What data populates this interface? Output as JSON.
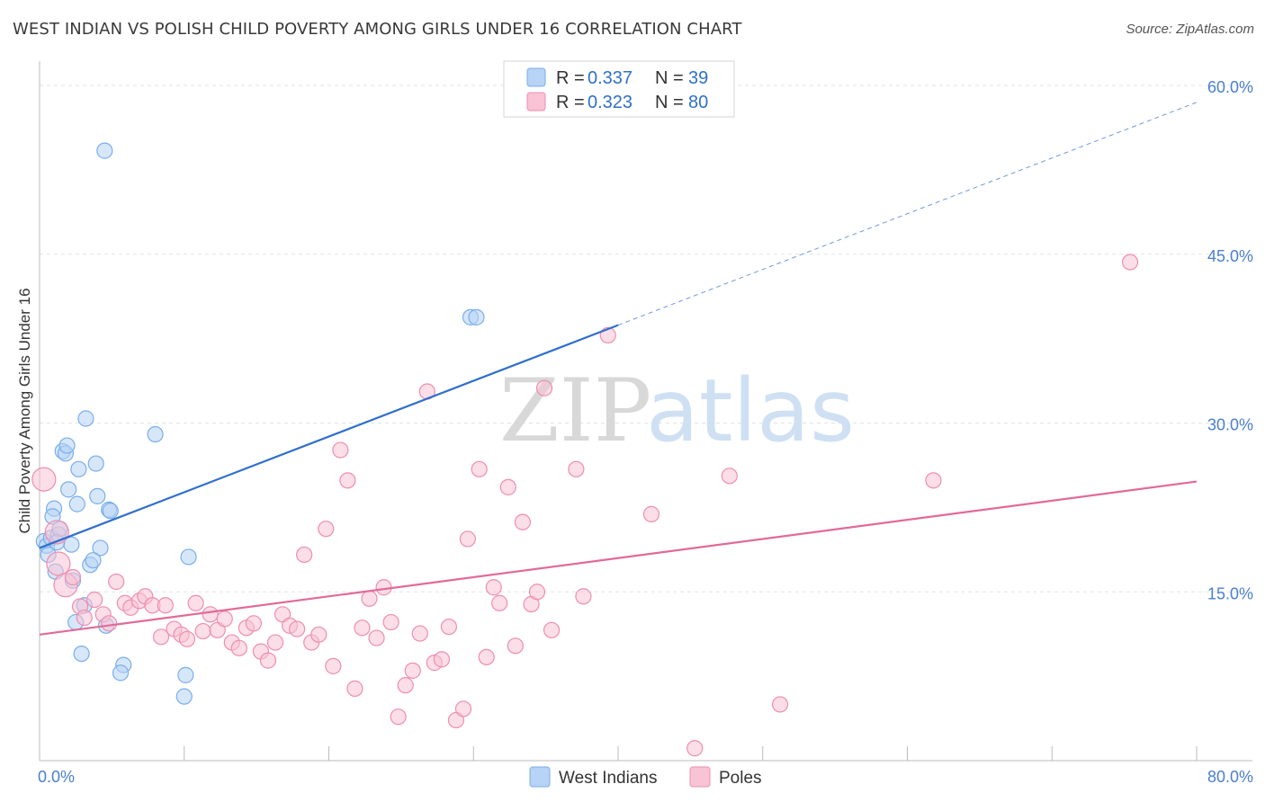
{
  "header": {
    "title": "WEST INDIAN VS POLISH CHILD POVERTY AMONG GIRLS UNDER 16 CORRELATION CHART",
    "source": "Source: ZipAtlas.com"
  },
  "watermark": {
    "zip": "ZIP",
    "atlas": "atlas"
  },
  "legend": {
    "r_label": "R = ",
    "n_label": "N = ",
    "series": [
      {
        "name": "West Indians",
        "r": "0.337",
        "n": "39",
        "color": "#7aaeea",
        "fill": "#b7d3f5"
      },
      {
        "name": "Poles",
        "r": "0.323",
        "n": "80",
        "color": "#ee8eb0",
        "fill": "#f8c3d4"
      }
    ]
  },
  "chart_data": {
    "type": "scatter",
    "title": "WEST INDIAN VS POLISH CHILD POVERTY AMONG GIRLS UNDER 16 CORRELATION CHART",
    "xlabel": "",
    "ylabel": "Child Poverty Among Girls Under 16",
    "xlim": [
      0,
      80
    ],
    "ylim": [
      0,
      60
    ],
    "x_tick_labels": [
      {
        "value": 0,
        "label": "0.0%"
      },
      {
        "value": 80,
        "label": "80.0%"
      }
    ],
    "y_tick_labels": [
      {
        "value": 15,
        "label": "15.0%"
      },
      {
        "value": 30,
        "label": "30.0%"
      },
      {
        "value": 45,
        "label": "45.0%"
      },
      {
        "value": 60,
        "label": "60.0%"
      }
    ],
    "series": [
      {
        "name": "West Indians",
        "color": "#7aaeea",
        "fill": "#b7d3f5",
        "trend": {
          "x0": 0,
          "y0": 18.9,
          "x1": 80,
          "y1": 58.5,
          "solid_until_x": 40,
          "line_color": "#2f6fcc"
        },
        "points": [
          [
            4.5,
            54.2
          ],
          [
            0.3,
            19.5
          ],
          [
            0.5,
            19.1
          ],
          [
            0.6,
            18.3
          ],
          [
            0.8,
            19.8
          ],
          [
            1.0,
            22.4
          ],
          [
            0.9,
            21.7
          ],
          [
            1.3,
            20.1
          ],
          [
            1.4,
            20.6
          ],
          [
            1.1,
            16.8
          ],
          [
            1.6,
            27.5
          ],
          [
            1.8,
            27.3
          ],
          [
            1.9,
            28.0
          ],
          [
            2.0,
            24.1
          ],
          [
            2.2,
            19.2
          ],
          [
            2.3,
            16.0
          ],
          [
            2.7,
            25.9
          ],
          [
            2.6,
            22.8
          ],
          [
            3.2,
            30.4
          ],
          [
            3.9,
            26.4
          ],
          [
            4.0,
            23.5
          ],
          [
            4.2,
            18.9
          ],
          [
            3.5,
            17.4
          ],
          [
            3.7,
            17.8
          ],
          [
            4.8,
            22.3
          ],
          [
            4.9,
            22.2
          ],
          [
            3.1,
            13.8
          ],
          [
            2.5,
            12.3
          ],
          [
            4.6,
            12.0
          ],
          [
            2.9,
            9.5
          ],
          [
            5.8,
            8.5
          ],
          [
            5.6,
            7.8
          ],
          [
            8.0,
            29.0
          ],
          [
            10.3,
            18.1
          ],
          [
            10.1,
            7.6
          ],
          [
            10.0,
            5.7
          ],
          [
            29.8,
            39.4
          ],
          [
            30.2,
            39.4
          ],
          [
            1.2,
            19.4
          ]
        ]
      },
      {
        "name": "Poles",
        "color": "#ee8eb0",
        "fill": "#f8c3d4",
        "trend": {
          "x0": 0,
          "y0": 11.2,
          "x1": 80,
          "y1": 24.8,
          "solid_until_x": 80,
          "line_color": "#e26a98"
        },
        "points": [
          [
            0.3,
            25.0
          ],
          [
            1.2,
            20.3
          ],
          [
            1.3,
            17.5
          ],
          [
            1.8,
            15.6
          ],
          [
            2.3,
            16.3
          ],
          [
            2.8,
            13.7
          ],
          [
            3.1,
            12.7
          ],
          [
            3.8,
            14.3
          ],
          [
            4.4,
            13.0
          ],
          [
            4.8,
            12.2
          ],
          [
            5.3,
            15.9
          ],
          [
            5.9,
            14.0
          ],
          [
            6.3,
            13.6
          ],
          [
            6.9,
            14.2
          ],
          [
            7.3,
            14.6
          ],
          [
            7.8,
            13.8
          ],
          [
            8.4,
            11.0
          ],
          [
            8.7,
            13.8
          ],
          [
            9.3,
            11.7
          ],
          [
            9.8,
            11.2
          ],
          [
            10.2,
            10.8
          ],
          [
            10.8,
            14.0
          ],
          [
            11.3,
            11.5
          ],
          [
            11.8,
            13.0
          ],
          [
            12.3,
            11.6
          ],
          [
            12.8,
            12.6
          ],
          [
            13.3,
            10.5
          ],
          [
            13.8,
            10.0
          ],
          [
            14.3,
            11.8
          ],
          [
            14.8,
            12.2
          ],
          [
            15.3,
            9.7
          ],
          [
            15.8,
            8.9
          ],
          [
            16.3,
            10.5
          ],
          [
            16.8,
            13.0
          ],
          [
            17.3,
            12.0
          ],
          [
            17.8,
            11.7
          ],
          [
            18.3,
            18.3
          ],
          [
            18.8,
            10.5
          ],
          [
            19.3,
            11.2
          ],
          [
            19.8,
            20.6
          ],
          [
            20.3,
            8.4
          ],
          [
            20.8,
            27.6
          ],
          [
            21.3,
            24.9
          ],
          [
            21.8,
            6.4
          ],
          [
            22.3,
            11.8
          ],
          [
            22.8,
            14.4
          ],
          [
            23.3,
            10.9
          ],
          [
            23.8,
            15.4
          ],
          [
            24.3,
            12.3
          ],
          [
            24.8,
            3.9
          ],
          [
            25.3,
            6.7
          ],
          [
            25.8,
            8.0
          ],
          [
            26.3,
            11.3
          ],
          [
            26.8,
            32.8
          ],
          [
            27.3,
            8.7
          ],
          [
            27.8,
            9.0
          ],
          [
            28.3,
            11.9
          ],
          [
            28.8,
            3.6
          ],
          [
            29.3,
            4.6
          ],
          [
            29.6,
            19.7
          ],
          [
            30.4,
            25.9
          ],
          [
            30.9,
            9.2
          ],
          [
            31.4,
            15.4
          ],
          [
            31.8,
            14.0
          ],
          [
            32.4,
            24.3
          ],
          [
            32.9,
            10.2
          ],
          [
            33.4,
            21.2
          ],
          [
            34.0,
            13.9
          ],
          [
            34.4,
            15.0
          ],
          [
            34.9,
            33.1
          ],
          [
            35.4,
            11.6
          ],
          [
            37.1,
            25.9
          ],
          [
            37.6,
            14.6
          ],
          [
            39.3,
            37.8
          ],
          [
            42.3,
            21.9
          ],
          [
            45.3,
            1.1
          ],
          [
            47.7,
            25.3
          ],
          [
            51.2,
            5.0
          ],
          [
            61.8,
            24.9
          ],
          [
            75.4,
            44.3
          ]
        ]
      }
    ]
  }
}
